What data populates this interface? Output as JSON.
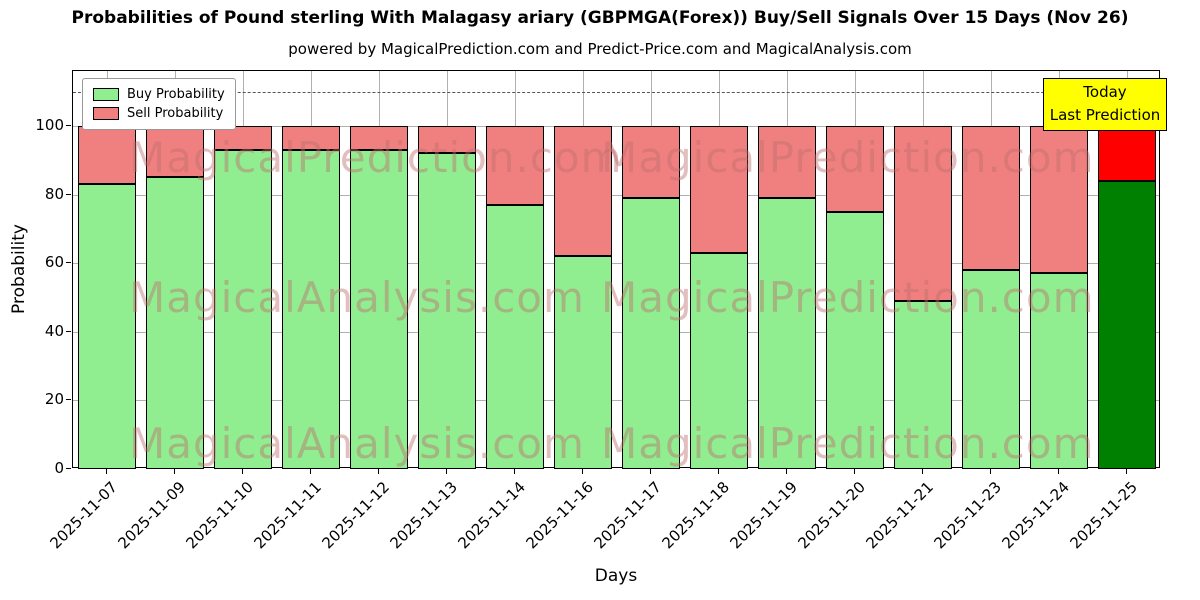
{
  "title": "Probabilities of Pound sterling With Malagasy ariary (GBPMGA(Forex)) Buy/Sell Signals Over 15 Days (Nov 26)",
  "subtitle": "powered by MagicalPrediction.com and Predict-Price.com and MagicalAnalysis.com",
  "legend": {
    "buy_label": "Buy Probability",
    "sell_label": "Sell Probability"
  },
  "annotation": {
    "line1": "Today",
    "line2": "Last Prediction"
  },
  "watermarks": {
    "rows": [
      {
        "left": "MagicalPrediction.com",
        "right": "MagicalPrediction.com"
      },
      {
        "left": "MagicalAnalysis.com",
        "right": "MagicalPrediction.com"
      },
      {
        "left": "MagicalAnalysis.com",
        "right": "MagicalPrediction.com"
      }
    ],
    "color": "rgba(190,110,110,0.45)"
  },
  "colors": {
    "buy": "#90ee90",
    "sell": "#f08080",
    "buy_today": "#008000",
    "sell_today": "#ff0000",
    "grid": "#b0b0b0",
    "annotation_bg": "#ffff00"
  },
  "chart_data": {
    "type": "bar",
    "stacked": true,
    "title": "Probabilities of Pound sterling With Malagasy ariary (GBPMGA(Forex)) Buy/Sell Signals Over 15 Days (Nov 26)",
    "xlabel": "Days",
    "ylabel": "Probability",
    "categories": [
      "2025-11-07",
      "2025-11-09",
      "2025-11-10",
      "2025-11-11",
      "2025-11-12",
      "2025-11-13",
      "2025-11-14",
      "2025-11-16",
      "2025-11-17",
      "2025-11-18",
      "2025-11-19",
      "2025-11-20",
      "2025-11-21",
      "2025-11-23",
      "2025-11-24",
      "2025-11-25"
    ],
    "series": [
      {
        "name": "Buy Probability",
        "values": [
          83,
          85,
          93,
          93,
          93,
          92,
          77,
          62,
          79,
          63,
          79,
          75,
          49,
          58,
          57,
          84
        ]
      },
      {
        "name": "Sell Probability",
        "values": [
          17,
          15,
          7,
          7,
          7,
          8,
          23,
          38,
          21,
          37,
          21,
          25,
          51,
          42,
          43,
          16
        ]
      }
    ],
    "yticks": [
      0,
      20,
      40,
      60,
      80,
      100
    ],
    "ylim": [
      0,
      116
    ],
    "dashed_line_y": 110,
    "grid": true,
    "legend_position": "upper left"
  }
}
